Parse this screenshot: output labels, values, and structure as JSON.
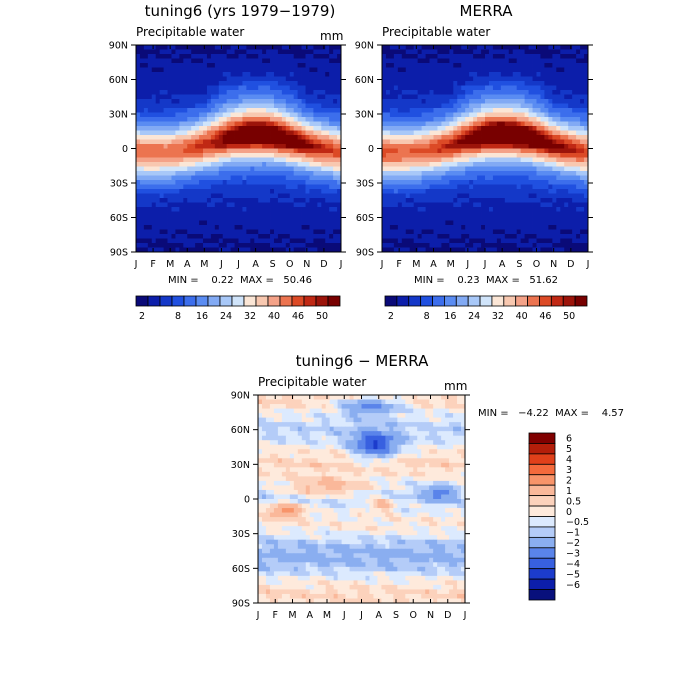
{
  "chart_data": [
    {
      "type": "heatmap",
      "title": "tuning6 (yrs 1979−1979)",
      "subtitle": "Precipitable water",
      "units": "mm",
      "x_ticks": [
        "J",
        "F",
        "M",
        "A",
        "M",
        "J",
        "J",
        "A",
        "S",
        "O",
        "N",
        "D",
        "J"
      ],
      "y_ticks": [
        "90N",
        "60N",
        "30N",
        "0",
        "30S",
        "60S",
        "90S"
      ],
      "stats": "MIN =    0.22  MAX =   50.46",
      "min": 0.22,
      "max": 50.46,
      "colorbar_ticks": [
        "2",
        "8",
        "16",
        "24",
        "32",
        "40",
        "46",
        "50"
      ],
      "colorbar_levels": [
        2,
        4,
        6,
        8,
        12,
        16,
        20,
        24,
        28,
        32,
        36,
        40,
        44,
        46,
        48,
        50
      ],
      "colors": [
        "#0a0a78",
        "#0c1eaa",
        "#1438c8",
        "#2050e0",
        "#3c6eec",
        "#5a8cf2",
        "#82aaf4",
        "#a8c8f8",
        "#d0e4fa",
        "#fbe6d6",
        "#f8c8b0",
        "#f4a288",
        "#ec7450",
        "#dc4a26",
        "#c02814",
        "#9c140a",
        "#780000"
      ],
      "peak": {
        "lat": 5,
        "month": 7,
        "value": 50
      }
    },
    {
      "type": "heatmap",
      "title": "MERRA",
      "subtitle": "Precipitable water",
      "x_ticks": [
        "J",
        "F",
        "M",
        "A",
        "M",
        "J",
        "J",
        "A",
        "S",
        "O",
        "N",
        "D",
        "J"
      ],
      "y_ticks": [
        "90N",
        "60N",
        "30N",
        "0",
        "30S",
        "60S",
        "90S"
      ],
      "stats": "MIN =    0.23  MAX =   51.62",
      "min": 0.23,
      "max": 51.62,
      "colorbar_ticks": [
        "2",
        "8",
        "16",
        "24",
        "32",
        "40",
        "46",
        "50"
      ]
    },
    {
      "type": "heatmap",
      "title": "tuning6 − MERRA",
      "subtitle": "Precipitable water",
      "units": "mm",
      "x_ticks": [
        "J",
        "F",
        "M",
        "A",
        "M",
        "J",
        "J",
        "A",
        "S",
        "O",
        "N",
        "D",
        "J"
      ],
      "y_ticks": [
        "90N",
        "60N",
        "30N",
        "0",
        "30S",
        "60S",
        "90S"
      ],
      "stats": "MIN =   −4.22  MAX =    4.57",
      "min": -4.22,
      "max": 4.57,
      "colorbar_labels": [
        "6",
        "5",
        "4",
        "3",
        "2",
        "1",
        "0.5",
        "0",
        "−0.5",
        "−1",
        "−2",
        "−3",
        "−4",
        "−5",
        "−6"
      ],
      "colorbar_levels": [
        -6,
        -5,
        -4,
        -3,
        -2,
        -1,
        -0.5,
        0,
        0.5,
        1,
        2,
        3,
        4,
        5,
        6
      ],
      "colors": [
        "#800000",
        "#b41e0a",
        "#e0401a",
        "#f46a3c",
        "#f8946a",
        "#fab89a",
        "#fcd2bc",
        "#feeadc",
        "#dceafe",
        "#b4ccf8",
        "#8aaef0",
        "#5a84ea",
        "#3860e0",
        "#1c3ccc",
        "#0c1eaa",
        "#08107c"
      ]
    }
  ]
}
